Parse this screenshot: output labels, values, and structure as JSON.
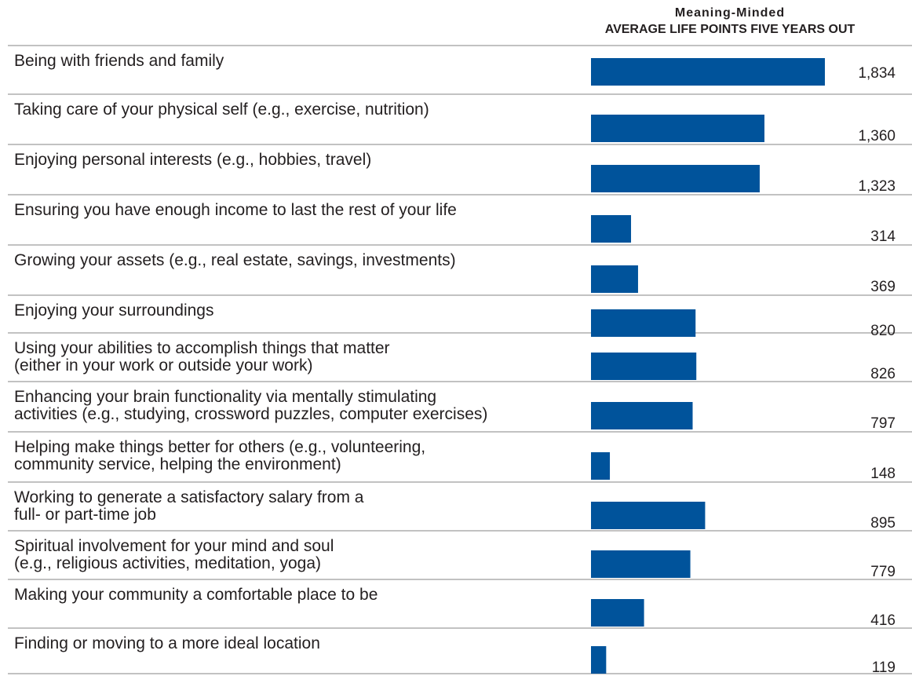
{
  "chart_data": {
    "type": "bar",
    "orientation": "horizontal",
    "title": "Meaning-Minded",
    "subtitle": "AVERAGE LIFE POINTS FIVE YEARS OUT",
    "categories": [
      [
        "Being with friends and family"
      ],
      [
        "Taking care of your physical self (e.g., exercise, nutrition)"
      ],
      [
        "Enjoying personal interests (e.g., hobbies, travel)"
      ],
      [
        "Ensuring you have enough income to last the rest of your life"
      ],
      [
        "Growing your assets (e.g., real estate, savings, investments)"
      ],
      [
        "Enjoying your surroundings"
      ],
      [
        "Using your abilities to accomplish things that matter",
        "(either in your work or outside your work)"
      ],
      [
        "Enhancing your brain functionality via mentally stimulating",
        "activities (e.g., studying, crossword puzzles, computer exercises)"
      ],
      [
        "Helping make things better for others (e.g., volunteering,",
        "community service, helping the environment)"
      ],
      [
        "Working to generate a satisfactory salary from a",
        "full- or part-time job"
      ],
      [
        "Spiritual involvement for your mind and soul",
        "(e.g., religious activities, meditation, yoga)"
      ],
      [
        "Making your community a comfortable place to be"
      ],
      [
        "Finding or moving to a more ideal location"
      ]
    ],
    "values": [
      1834,
      1360,
      1323,
      314,
      369,
      820,
      826,
      797,
      148,
      895,
      779,
      416,
      119
    ],
    "value_labels": [
      "1,834",
      "1,360",
      "1,323",
      "314",
      "369",
      "820",
      "826",
      "797",
      "148",
      "895",
      "779",
      "416",
      "119"
    ],
    "xlim": [
      0,
      1834
    ],
    "grid": false,
    "bar_color": "#00539b",
    "divider_color": "#9e9e9e"
  }
}
